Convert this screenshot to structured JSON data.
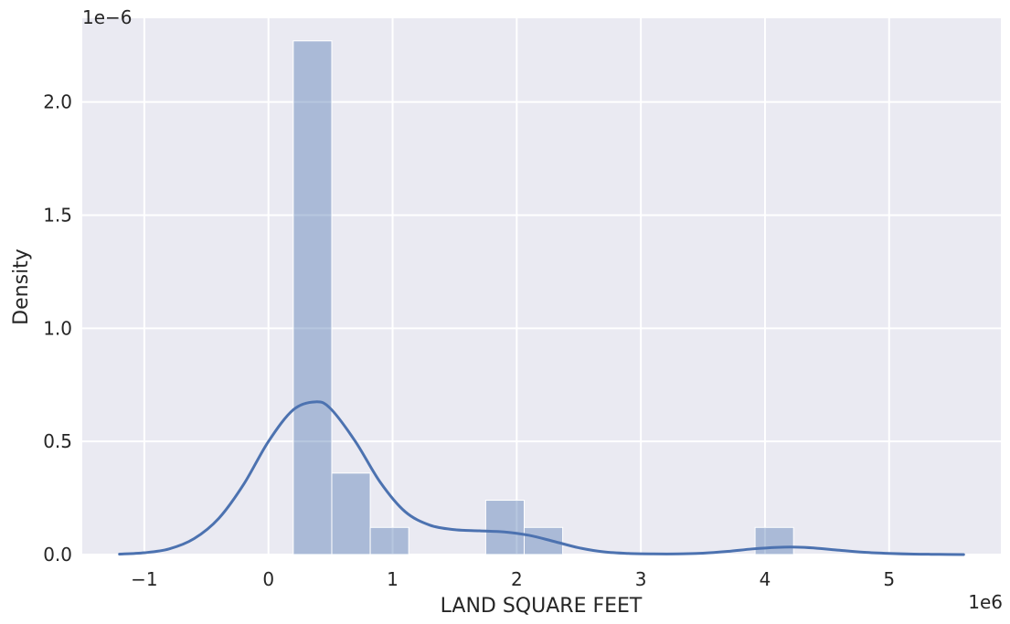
{
  "chart_data": {
    "type": "histogram",
    "xlabel": "LAND SQUARE FEET",
    "ylabel": "Density",
    "x_offset_label": "1e6",
    "y_offset_label": "1e−6",
    "xlim": [
      -1.5,
      5.9
    ],
    "ylim": [
      0,
      2.37
    ],
    "x_ticks": [
      -1,
      0,
      1,
      2,
      3,
      4,
      5
    ],
    "x_tick_labels": [
      "−1",
      "0",
      "1",
      "2",
      "3",
      "4",
      "5"
    ],
    "y_ticks": [
      0.0,
      0.5,
      1.0,
      1.5,
      2.0
    ],
    "y_tick_labels": [
      "0.0",
      "0.5",
      "1.0",
      "1.5",
      "2.0"
    ],
    "grid": true,
    "histogram": {
      "bin_edges": [
        0.2,
        0.51,
        0.82,
        1.13,
        1.44,
        1.75,
        2.06,
        2.37,
        2.68,
        2.99,
        3.3,
        3.61,
        3.92,
        4.23
      ],
      "densities": [
        2.27,
        0.36,
        0.12,
        0.0,
        0.0,
        0.24,
        0.12,
        0.0,
        0.0,
        0.0,
        0.0,
        0.0,
        0.12
      ],
      "color": "#4c72b0",
      "opacity": 0.4
    },
    "kde": {
      "x": [
        -1.2,
        -1.0,
        -0.8,
        -0.6,
        -0.4,
        -0.2,
        0.0,
        0.2,
        0.38,
        0.5,
        0.7,
        0.9,
        1.1,
        1.3,
        1.5,
        1.7,
        1.9,
        2.1,
        2.3,
        2.5,
        2.7,
        2.9,
        3.1,
        3.3,
        3.5,
        3.7,
        3.9,
        4.1,
        4.25,
        4.4,
        4.6,
        4.8,
        5.0,
        5.2,
        5.4,
        5.6
      ],
      "y": [
        0.002,
        0.008,
        0.025,
        0.07,
        0.16,
        0.31,
        0.5,
        0.64,
        0.675,
        0.645,
        0.5,
        0.32,
        0.19,
        0.13,
        0.11,
        0.105,
        0.1,
        0.085,
        0.058,
        0.03,
        0.012,
        0.005,
        0.003,
        0.003,
        0.006,
        0.014,
        0.025,
        0.032,
        0.033,
        0.029,
        0.019,
        0.01,
        0.005,
        0.002,
        0.001,
        0.0
      ],
      "color": "#4c72b0"
    },
    "colors": {
      "plot_background": "#eaeaf2",
      "grid": "#ffffff",
      "text": "#262626"
    }
  }
}
